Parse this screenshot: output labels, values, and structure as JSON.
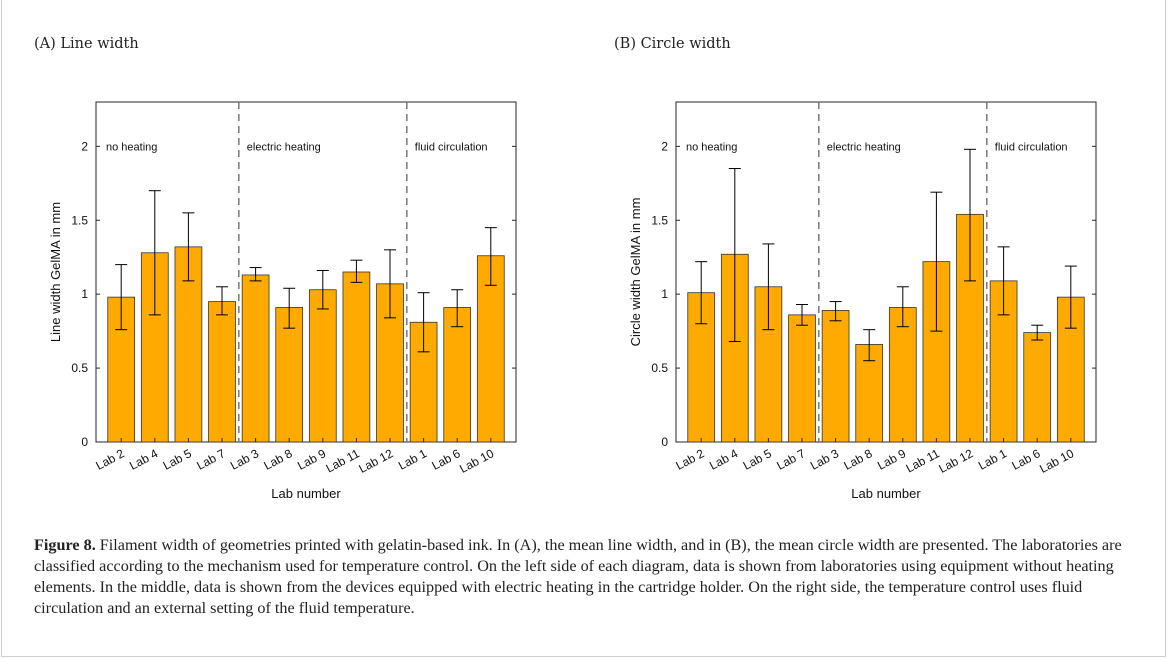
{
  "figure": {
    "caption_label": "Figure 8.",
    "caption_text": " Filament width of geometries printed with gelatin-based ink. In (A), the mean line width, and in (B), the mean circle width are presented. The laboratories are classified according to the mechanism used for temperature control. On the left side of each diagram, data is shown from laboratories using equipment without heating elements. In the middle, data is shown from the devices equipped with electric heating in the cartridge holder. On the right side, the temperature control uses fluid circulation and an external setting of the fluid temperature."
  },
  "colors": {
    "bar_fill": "#FFAA00",
    "bar_stroke": "#333333",
    "divider": "#777777",
    "axis": "#262626"
  },
  "chart_data": [
    {
      "type": "bar",
      "panel_title": "(A) Line width",
      "xlabel": "Lab number",
      "ylabel": "Line width GelMA in mm",
      "ylim": [
        0,
        2.3
      ],
      "yticks": [
        0,
        0.5,
        1,
        1.5,
        2
      ],
      "ytick_labels": [
        "0",
        "0.5",
        "1",
        "1.5",
        "2"
      ],
      "categories": [
        "Lab 2",
        "Lab 4",
        "Lab 5",
        "Lab 7",
        "Lab 3",
        "Lab 8",
        "Lab 9",
        "Lab 11",
        "Lab 12",
        "Lab 1",
        "Lab 6",
        "Lab 10"
      ],
      "values": [
        0.98,
        1.28,
        1.32,
        0.95,
        1.13,
        0.91,
        1.03,
        1.15,
        1.07,
        0.81,
        0.91,
        1.26
      ],
      "err_low": [
        0.76,
        0.86,
        1.09,
        0.86,
        1.09,
        0.77,
        0.9,
        1.08,
        0.84,
        0.61,
        0.78,
        1.06
      ],
      "err_high": [
        1.2,
        1.7,
        1.55,
        1.05,
        1.18,
        1.04,
        1.16,
        1.23,
        1.3,
        1.01,
        1.03,
        1.45
      ],
      "groups": [
        {
          "label": "no heating",
          "start": 0,
          "end": 3
        },
        {
          "label": "electric heating",
          "start": 4,
          "end": 8
        },
        {
          "label": "fluid circulation",
          "start": 9,
          "end": 11
        }
      ],
      "grid": false
    },
    {
      "type": "bar",
      "panel_title": "(B) Circle width",
      "xlabel": "Lab number",
      "ylabel": "Circle width GelMA in mm",
      "ylim": [
        0,
        2.3
      ],
      "yticks": [
        0,
        0.5,
        1,
        1.5,
        2
      ],
      "ytick_labels": [
        "0",
        "0.5",
        "1",
        "1.5",
        "2"
      ],
      "categories": [
        "Lab 2",
        "Lab 4",
        "Lab 5",
        "Lab 7",
        "Lab 3",
        "Lab 8",
        "Lab 9",
        "Lab 11",
        "Lab 12",
        "Lab 1",
        "Lab 6",
        "Lab 10"
      ],
      "values": [
        1.01,
        1.27,
        1.05,
        0.86,
        0.89,
        0.66,
        0.91,
        1.22,
        1.54,
        1.09,
        0.74,
        0.98
      ],
      "err_low": [
        0.8,
        0.68,
        0.76,
        0.79,
        0.82,
        0.55,
        0.78,
        0.75,
        1.09,
        0.86,
        0.69,
        0.77
      ],
      "err_high": [
        1.22,
        1.85,
        1.34,
        0.93,
        0.95,
        0.76,
        1.05,
        1.69,
        1.98,
        1.32,
        0.79,
        1.19
      ],
      "groups": [
        {
          "label": "no heating",
          "start": 0,
          "end": 3
        },
        {
          "label": "electric heating",
          "start": 4,
          "end": 8
        },
        {
          "label": "fluid circulation",
          "start": 9,
          "end": 11
        }
      ],
      "grid": false
    }
  ]
}
